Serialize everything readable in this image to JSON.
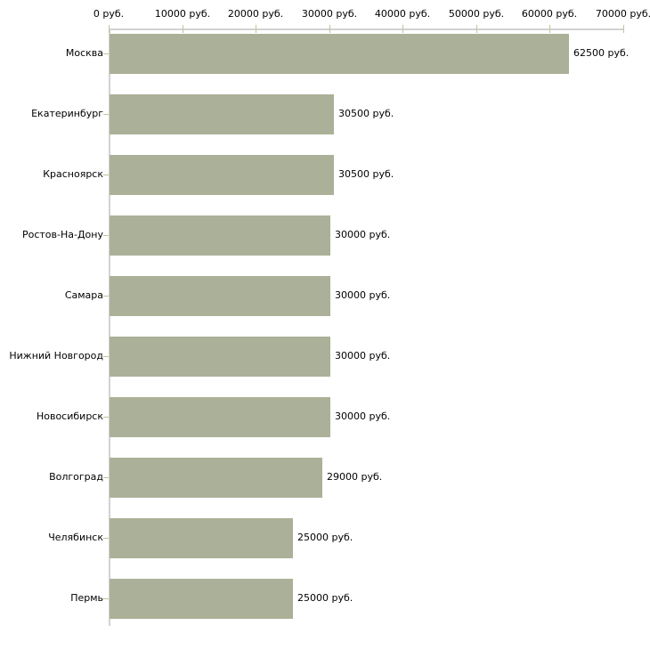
{
  "chart_data": {
    "type": "bar",
    "orientation": "horizontal",
    "title": "",
    "xlabel": "",
    "ylabel": "",
    "xlim": [
      0,
      70000
    ],
    "grid": false,
    "legend": false,
    "categories": [
      "Москва",
      "Екатеринбург",
      "Красноярск",
      "Ростов-На-Дону",
      "Самара",
      "Нижний Новгород",
      "Новосибирск",
      "Волгоград",
      "Челябинск",
      "Пермь"
    ],
    "values": [
      62500,
      30500,
      30500,
      30000,
      30000,
      30000,
      30000,
      29000,
      25000,
      25000
    ],
    "value_labels": [
      "62500 руб.",
      "30500 руб.",
      "30500 руб.",
      "30000 руб.",
      "30000 руб.",
      "30000 руб.",
      "30000 руб.",
      "29000 руб.",
      "25000 руб.",
      "25000 руб."
    ],
    "x_ticks": [
      {
        "value": 0,
        "label": "0 руб."
      },
      {
        "value": 10000,
        "label": "10000 руб."
      },
      {
        "value": 20000,
        "label": "20000 руб."
      },
      {
        "value": 30000,
        "label": "30000 руб."
      },
      {
        "value": 40000,
        "label": "40000 руб."
      },
      {
        "value": 50000,
        "label": "50000 руб."
      },
      {
        "value": 60000,
        "label": "60000 руб."
      },
      {
        "value": 70000,
        "label": "70000 руб."
      }
    ],
    "colors": {
      "bar": "#abb198",
      "axis": "#d2d2d2",
      "tick": "#c2c29a",
      "text": "#000000",
      "background": "#ffffff"
    }
  }
}
